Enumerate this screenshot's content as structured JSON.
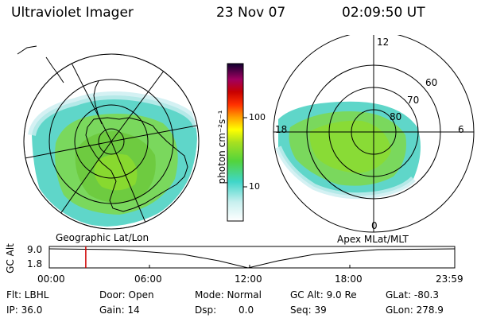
{
  "header": {
    "instrument": "Ultraviolet Imager",
    "date": "23 Nov 07",
    "time": "02:09:50 UT"
  },
  "left_panel": {
    "caption": "Geographic Lat/Lon"
  },
  "right_panel": {
    "caption": "Apex MLat/MLT",
    "mlt_labels": [
      "12",
      "18",
      "6",
      "0"
    ],
    "mlat_labels": [
      "60",
      "70",
      "80"
    ]
  },
  "colorbar": {
    "unit_label": "photon cm⁻²s⁻¹",
    "tick_labels": [
      "100",
      "10"
    ],
    "scale": "log"
  },
  "altitude_plot": {
    "ylabel": "GC Alt",
    "y_ticks": [
      "9.0",
      "1.8"
    ],
    "x_ticks": [
      "00:00",
      "06:00",
      "12:00",
      "18:00",
      "23:59"
    ],
    "cursor_time_hours": 2.16,
    "marker_color": "#d00000"
  },
  "info": {
    "flt": "Flt: LBHL",
    "door": "Door: Open",
    "mode": "Mode: Normal",
    "gcalt": "GC Alt: 9.0 Re",
    "glat": "GLat: -80.3",
    "ip": "IP: 36.0",
    "gain": "Gain: 14",
    "dsp_label": "Dsp:",
    "dsp_value": "0.0",
    "seq": "Seq: 39",
    "glon": "GLon: 278.9"
  }
}
